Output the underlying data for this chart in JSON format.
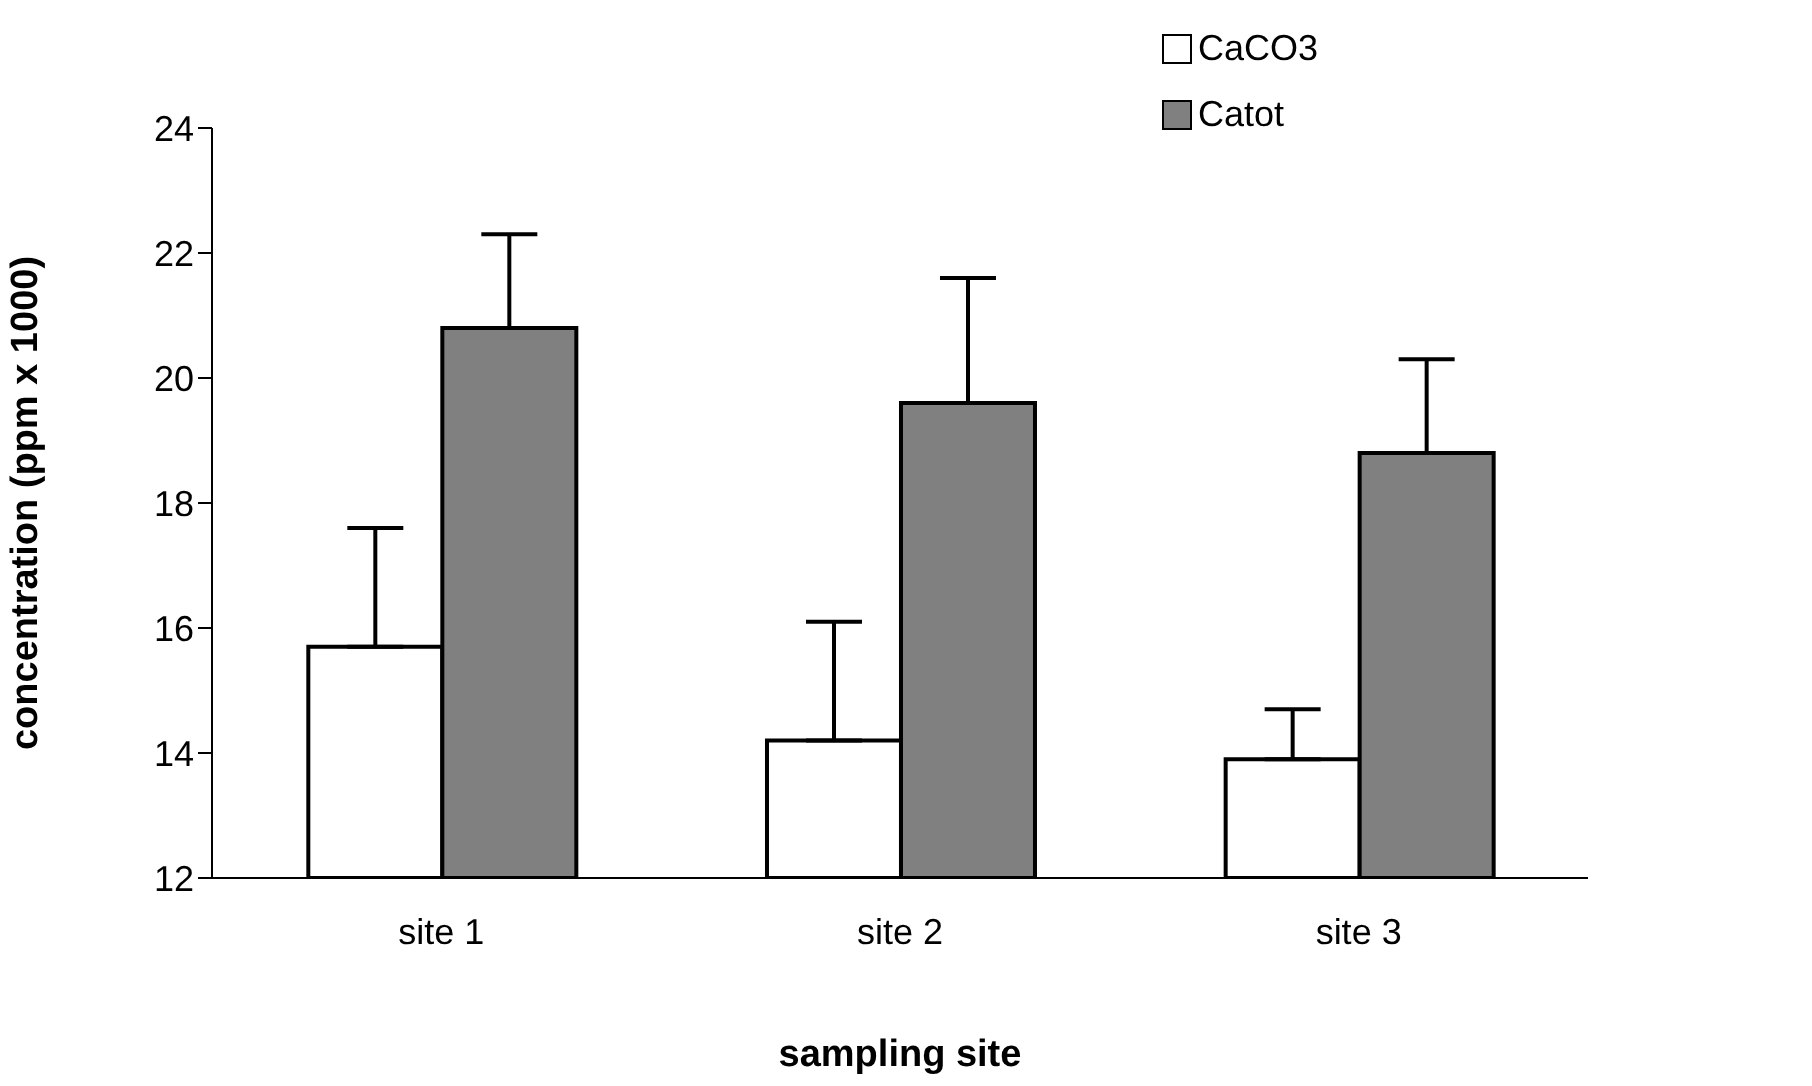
{
  "chart_data": {
    "type": "bar",
    "xlabel": "sampling site",
    "ylabel": "concentration (ppm x 1000)",
    "categories": [
      "site 1",
      "site 2",
      "site 3"
    ],
    "series": [
      {
        "name": "CaCO3",
        "color": "#ffffff",
        "values": [
          15.7,
          14.2,
          13.9
        ],
        "errors": [
          [
            15.7,
            17.6
          ],
          [
            14.2,
            16.1
          ],
          [
            13.9,
            14.7
          ]
        ]
      },
      {
        "name": "Catot",
        "color": "#808080",
        "values": [
          20.8,
          19.6,
          18.8
        ],
        "errors": [
          [
            20.8,
            22.3
          ],
          [
            19.6,
            21.6
          ],
          [
            18.8,
            20.3
          ]
        ]
      }
    ],
    "ylim": [
      12,
      24
    ],
    "yticks": [
      12,
      14,
      16,
      18,
      20,
      22,
      24
    ],
    "grid": false,
    "legend": "top right"
  }
}
